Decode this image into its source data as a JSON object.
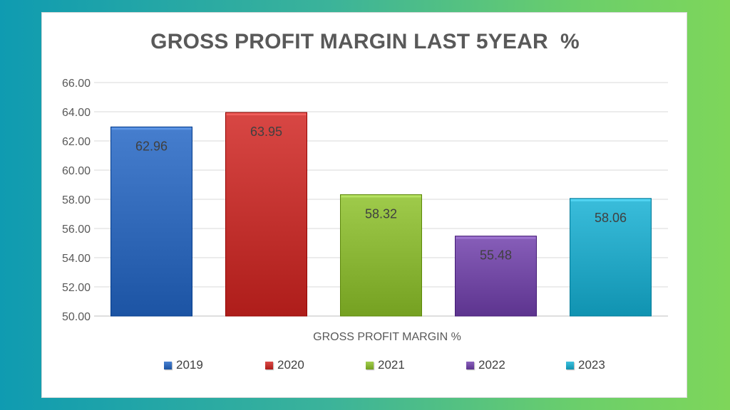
{
  "chart_data": {
    "type": "bar",
    "title": "GROSS PROFIT MARGIN LAST 5YEAR  %",
    "xlabel": "GROSS PROFIT MARGIN %",
    "ylabel": "",
    "ylim": [
      50,
      66
    ],
    "yticks": [
      "50.00",
      "52.00",
      "54.00",
      "56.00",
      "58.00",
      "60.00",
      "62.00",
      "64.00",
      "66.00"
    ],
    "grid": true,
    "legend_position": "bottom",
    "series": [
      {
        "name": "2019",
        "value": 62.96,
        "label": "62.96",
        "color": "#3a72c2"
      },
      {
        "name": "2020",
        "value": 63.95,
        "label": "63.95",
        "color": "#cc3b38"
      },
      {
        "name": "2021",
        "value": 58.32,
        "label": "58.32",
        "color": "#93bf3f"
      },
      {
        "name": "2022",
        "value": 55.48,
        "label": "55.48",
        "color": "#7b52ad"
      },
      {
        "name": "2023",
        "value": 58.06,
        "label": "58.06",
        "color": "#2eb1cf"
      }
    ]
  }
}
